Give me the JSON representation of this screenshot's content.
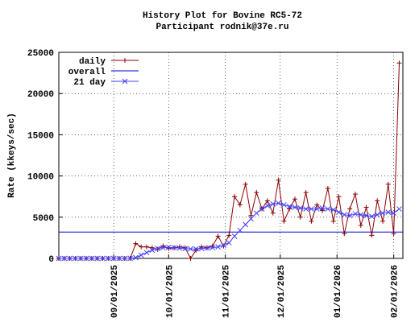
{
  "chart_data": {
    "type": "line",
    "title": "History Plot for Bovine RC5-72",
    "subtitle": "Participant rodnik@37e.ru",
    "y_label": "Rate (kkeys/sec)",
    "x": [
      "08/02/2025",
      "08/05/2025",
      "08/08/2025",
      "08/11/2025",
      "08/14/2025",
      "08/17/2025",
      "08/20/2025",
      "08/23/2025",
      "08/26/2025",
      "08/29/2025",
      "09/01/2025",
      "09/04/2025",
      "09/07/2025",
      "09/10/2025",
      "09/13/2025",
      "09/16/2025",
      "09/19/2025",
      "09/22/2025",
      "09/25/2025",
      "09/28/2025",
      "10/01/2025",
      "10/04/2025",
      "10/07/2025",
      "10/10/2025",
      "10/13/2025",
      "10/16/2025",
      "10/19/2025",
      "10/22/2025",
      "10/25/2025",
      "10/28/2025",
      "10/31/2025",
      "11/03/2025",
      "11/06/2025",
      "11/09/2025",
      "11/12/2025",
      "11/15/2025",
      "11/18/2025",
      "11/21/2025",
      "11/24/2025",
      "11/27/2025",
      "11/30/2025",
      "12/03/2025",
      "12/06/2025",
      "12/09/2025",
      "12/12/2025",
      "12/15/2025",
      "12/18/2025",
      "12/21/2025",
      "12/24/2025",
      "12/27/2025",
      "12/30/2025",
      "01/02/2026",
      "01/05/2026",
      "01/08/2026",
      "01/11/2026",
      "01/14/2026",
      "01/17/2026",
      "01/20/2026",
      "01/23/2026",
      "01/26/2026",
      "01/29/2026",
      "02/01/2026",
      "02/04/2026"
    ],
    "series": [
      {
        "name": "daily",
        "color": "#8b0000",
        "marker": "plus",
        "values": [
          0,
          0,
          0,
          0,
          0,
          0,
          0,
          0,
          0,
          0,
          0,
          0,
          0,
          0,
          1800,
          1400,
          1400,
          1300,
          1100,
          1500,
          1200,
          1300,
          1400,
          1300,
          0,
          1000,
          1400,
          1300,
          1500,
          2700,
          1500,
          2800,
          7500,
          6500,
          9000,
          5200,
          8000,
          6000,
          7000,
          5500,
          9500,
          4500,
          6000,
          7200,
          5000,
          8000,
          4500,
          6500,
          5800,
          8500,
          4500,
          7500,
          3000,
          6000,
          7800,
          4000,
          6200,
          2800,
          7000,
          4500,
          9000,
          3000,
          23700
        ]
      },
      {
        "name": "overall",
        "color": "#0000cc",
        "marker": "none",
        "x": [
          "08/02/2025",
          "02/06/2026"
        ],
        "values": [
          3200,
          3200
        ]
      },
      {
        "name": "21 day",
        "color": "#4040ff",
        "marker": "cross",
        "values": [
          0,
          0,
          0,
          0,
          0,
          0,
          0,
          0,
          0,
          0,
          0,
          0,
          0,
          0,
          100,
          400,
          700,
          1000,
          1200,
          1300,
          1350,
          1300,
          1250,
          1200,
          1150,
          1150,
          1200,
          1250,
          1300,
          1400,
          1600,
          1900,
          2700,
          3400,
          4100,
          4800,
          5500,
          6000,
          6400,
          6600,
          6700,
          6500,
          6300,
          6200,
          6100,
          6000,
          6000,
          6000,
          6100,
          6000,
          5900,
          5600,
          5300,
          5200,
          5400,
          5300,
          5200,
          5100,
          5300,
          5500,
          5600,
          5500,
          6000
        ]
      }
    ],
    "xlim": [
      "08/02/2025",
      "02/06/2026"
    ],
    "xticks": [
      "09/01/2025",
      "10/01/2025",
      "11/01/2025",
      "12/01/2025",
      "01/01/2026",
      "02/01/2026"
    ],
    "ylim": [
      0,
      25000
    ],
    "yticks": [
      0,
      5000,
      10000,
      15000,
      20000,
      25000
    ],
    "grid": true,
    "legend": "top-left"
  }
}
